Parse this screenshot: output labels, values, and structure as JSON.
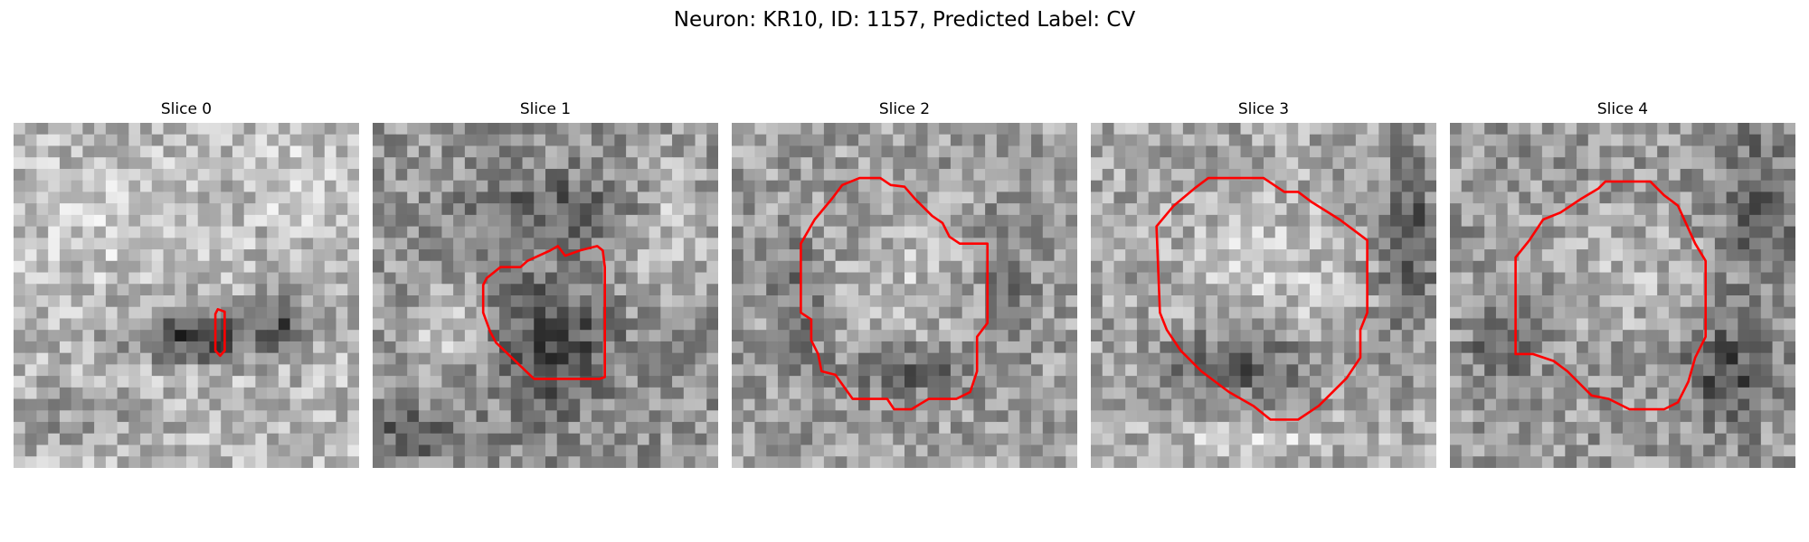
{
  "figure": {
    "title": "Neuron: KR10, ID: 1157, Predicted Label: CV",
    "contour_color": "#ff0000",
    "colormap": "gray",
    "grid_size": 30
  },
  "panels": [
    {
      "title": "Slice 0",
      "image": {
        "base": 0.72,
        "blobs": [
          [
            0.52,
            0.62,
            0.18,
            0.07,
            -0.5
          ],
          [
            0.78,
            0.58,
            0.1,
            0.08,
            -0.35
          ],
          [
            0.82,
            0.18,
            0.1,
            0.1,
            0.12
          ],
          [
            0.3,
            0.3,
            0.25,
            0.15,
            0.1
          ],
          [
            0.15,
            0.85,
            0.2,
            0.1,
            -0.12
          ]
        ]
      },
      "contour": [
        [
          0.591,
          0.54
        ],
        [
          0.611,
          0.547
        ],
        [
          0.611,
          0.66
        ],
        [
          0.598,
          0.675
        ],
        [
          0.584,
          0.66
        ],
        [
          0.584,
          0.554
        ]
      ]
    },
    {
      "title": "Slice 1",
      "image": {
        "base": 0.58,
        "blobs": [
          [
            0.52,
            0.65,
            0.16,
            0.18,
            -0.35
          ],
          [
            0.2,
            0.6,
            0.12,
            0.12,
            0.2
          ],
          [
            0.55,
            0.25,
            0.25,
            0.1,
            -0.2
          ],
          [
            0.85,
            0.3,
            0.12,
            0.2,
            0.2
          ],
          [
            0.1,
            0.9,
            0.15,
            0.08,
            -0.2
          ]
        ]
      },
      "contour": [
        [
          0.33,
          0.45
        ],
        [
          0.37,
          0.418
        ],
        [
          0.428,
          0.418
        ],
        [
          0.448,
          0.4
        ],
        [
          0.514,
          0.37
        ],
        [
          0.536,
          0.357
        ],
        [
          0.557,
          0.385
        ],
        [
          0.6,
          0.37
        ],
        [
          0.65,
          0.357
        ],
        [
          0.666,
          0.37
        ],
        [
          0.672,
          0.418
        ],
        [
          0.672,
          0.737
        ],
        [
          0.657,
          0.742
        ],
        [
          0.467,
          0.742
        ],
        [
          0.357,
          0.637
        ],
        [
          0.34,
          0.605
        ],
        [
          0.32,
          0.55
        ],
        [
          0.32,
          0.47
        ]
      ]
    },
    {
      "title": "Slice 2",
      "image": {
        "base": 0.62,
        "blobs": [
          [
            0.5,
            0.45,
            0.2,
            0.22,
            0.12
          ],
          [
            0.5,
            0.72,
            0.18,
            0.08,
            -0.25
          ],
          [
            0.2,
            0.5,
            0.08,
            0.2,
            -0.15
          ],
          [
            0.8,
            0.45,
            0.08,
            0.2,
            -0.15
          ]
        ]
      },
      "contour": [
        [
          0.37,
          0.16
        ],
        [
          0.43,
          0.16
        ],
        [
          0.46,
          0.18
        ],
        [
          0.5,
          0.185
        ],
        [
          0.53,
          0.22
        ],
        [
          0.58,
          0.27
        ],
        [
          0.61,
          0.29
        ],
        [
          0.63,
          0.33
        ],
        [
          0.66,
          0.35
        ],
        [
          0.74,
          0.35
        ],
        [
          0.74,
          0.58
        ],
        [
          0.71,
          0.62
        ],
        [
          0.71,
          0.72
        ],
        [
          0.69,
          0.78
        ],
        [
          0.65,
          0.8
        ],
        [
          0.57,
          0.8
        ],
        [
          0.52,
          0.83
        ],
        [
          0.47,
          0.83
        ],
        [
          0.45,
          0.8
        ],
        [
          0.35,
          0.8
        ],
        [
          0.3,
          0.73
        ],
        [
          0.26,
          0.72
        ],
        [
          0.25,
          0.67
        ],
        [
          0.23,
          0.63
        ],
        [
          0.23,
          0.57
        ],
        [
          0.2,
          0.55
        ],
        [
          0.2,
          0.35
        ],
        [
          0.24,
          0.28
        ],
        [
          0.29,
          0.22
        ],
        [
          0.32,
          0.18
        ]
      ]
    },
    {
      "title": "Slice 3",
      "image": {
        "base": 0.65,
        "blobs": [
          [
            0.5,
            0.42,
            0.22,
            0.2,
            0.15
          ],
          [
            0.42,
            0.7,
            0.2,
            0.1,
            -0.3
          ],
          [
            0.92,
            0.35,
            0.08,
            0.25,
            -0.35
          ],
          [
            0.5,
            0.92,
            0.3,
            0.05,
            0.15
          ]
        ]
      },
      "contour": [
        [
          0.34,
          0.16
        ],
        [
          0.5,
          0.16
        ],
        [
          0.56,
          0.2
        ],
        [
          0.6,
          0.2
        ],
        [
          0.64,
          0.23
        ],
        [
          0.72,
          0.28
        ],
        [
          0.8,
          0.34
        ],
        [
          0.8,
          0.55
        ],
        [
          0.78,
          0.6
        ],
        [
          0.78,
          0.68
        ],
        [
          0.74,
          0.74
        ],
        [
          0.66,
          0.82
        ],
        [
          0.6,
          0.86
        ],
        [
          0.52,
          0.86
        ],
        [
          0.47,
          0.82
        ],
        [
          0.4,
          0.78
        ],
        [
          0.32,
          0.72
        ],
        [
          0.26,
          0.66
        ],
        [
          0.22,
          0.6
        ],
        [
          0.2,
          0.55
        ],
        [
          0.19,
          0.3
        ],
        [
          0.24,
          0.24
        ],
        [
          0.3,
          0.19
        ]
      ]
    },
    {
      "title": "Slice 4",
      "image": {
        "base": 0.6,
        "blobs": [
          [
            0.5,
            0.42,
            0.2,
            0.2,
            0.12
          ],
          [
            0.8,
            0.72,
            0.12,
            0.15,
            -0.3
          ],
          [
            0.15,
            0.65,
            0.1,
            0.1,
            -0.2
          ],
          [
            0.9,
            0.25,
            0.1,
            0.25,
            -0.2
          ]
        ]
      },
      "contour": [
        [
          0.38,
          0.22
        ],
        [
          0.43,
          0.19
        ],
        [
          0.45,
          0.17
        ],
        [
          0.58,
          0.17
        ],
        [
          0.62,
          0.21
        ],
        [
          0.66,
          0.24
        ],
        [
          0.71,
          0.35
        ],
        [
          0.74,
          0.4
        ],
        [
          0.74,
          0.62
        ],
        [
          0.71,
          0.68
        ],
        [
          0.69,
          0.75
        ],
        [
          0.66,
          0.81
        ],
        [
          0.62,
          0.83
        ],
        [
          0.52,
          0.83
        ],
        [
          0.46,
          0.8
        ],
        [
          0.41,
          0.79
        ],
        [
          0.34,
          0.72
        ],
        [
          0.3,
          0.69
        ],
        [
          0.24,
          0.67
        ],
        [
          0.19,
          0.67
        ],
        [
          0.19,
          0.39
        ],
        [
          0.23,
          0.34
        ],
        [
          0.27,
          0.28
        ],
        [
          0.32,
          0.26
        ]
      ]
    }
  ]
}
